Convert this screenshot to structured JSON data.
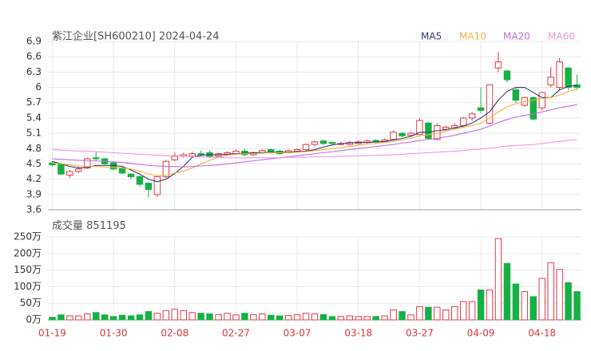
{
  "chart_data": [
    {
      "type": "candlestick",
      "title": "紫江企业[SH600210] 2024-04-24",
      "categories": [
        "01-19",
        null,
        null,
        null,
        null,
        null,
        null,
        "01-30",
        null,
        null,
        null,
        null,
        null,
        null,
        "02-08",
        null,
        null,
        null,
        null,
        null,
        null,
        "02-27",
        null,
        null,
        null,
        null,
        null,
        null,
        "03-07",
        null,
        null,
        null,
        null,
        null,
        null,
        "03-18",
        null,
        null,
        null,
        null,
        null,
        null,
        "03-27",
        null,
        null,
        null,
        null,
        null,
        null,
        "04-09",
        null,
        null,
        null,
        null,
        null,
        null,
        "04-18",
        null,
        null,
        null,
        null
      ],
      "open": [
        4.52,
        4.5,
        4.28,
        4.35,
        4.42,
        4.62,
        4.6,
        4.52,
        4.42,
        4.3,
        4.25,
        4.12,
        3.9,
        4.25,
        4.58,
        4.65,
        4.65,
        4.7,
        4.72,
        4.65,
        4.68,
        4.7,
        4.75,
        4.68,
        4.72,
        4.78,
        4.75,
        4.72,
        4.75,
        4.78,
        4.88,
        4.95,
        4.92,
        4.88,
        4.88,
        4.9,
        4.92,
        4.96,
        4.93,
        4.98,
        5.1,
        5.06,
        5.08,
        5.3,
        4.98,
        5.18,
        5.2,
        5.25,
        5.4,
        5.6,
        5.3,
        6.38,
        6.32,
        5.95,
        5.65,
        5.8,
        5.6,
        6.05,
        6.0,
        6.38,
        6.05
      ],
      "high": [
        4.55,
        4.52,
        4.38,
        4.45,
        4.62,
        4.75,
        4.62,
        4.54,
        4.44,
        4.32,
        4.27,
        4.15,
        4.28,
        4.58,
        4.72,
        4.72,
        4.74,
        4.76,
        4.76,
        4.72,
        4.75,
        4.78,
        4.8,
        4.74,
        4.78,
        4.8,
        4.78,
        4.78,
        4.8,
        4.9,
        4.96,
        4.97,
        4.94,
        4.93,
        4.95,
        4.96,
        4.98,
        4.98,
        5.0,
        5.15,
        5.12,
        5.13,
        5.4,
        5.32,
        5.3,
        5.25,
        5.3,
        5.42,
        5.52,
        6.0,
        6.05,
        6.7,
        6.35,
        6.0,
        5.82,
        5.82,
        5.92,
        6.4,
        6.58,
        6.4,
        6.25
      ],
      "low": [
        4.45,
        4.28,
        4.22,
        4.32,
        4.4,
        4.55,
        4.48,
        4.38,
        4.3,
        4.2,
        4.05,
        3.85,
        3.85,
        4.22,
        4.55,
        4.62,
        4.62,
        4.65,
        4.62,
        4.63,
        4.66,
        4.68,
        4.65,
        4.66,
        4.7,
        4.7,
        4.68,
        4.7,
        4.73,
        4.76,
        4.85,
        4.87,
        4.88,
        4.86,
        4.86,
        4.88,
        4.9,
        4.9,
        4.92,
        4.96,
        5.02,
        5.04,
        5.06,
        4.98,
        4.96,
        5.15,
        5.18,
        5.22,
        5.35,
        5.5,
        5.28,
        6.3,
        6.1,
        5.7,
        5.62,
        5.35,
        5.55,
        6.0,
        5.95,
        5.95,
        5.95
      ],
      "close": [
        4.48,
        4.3,
        4.35,
        4.4,
        4.6,
        4.6,
        4.5,
        4.4,
        4.32,
        4.25,
        4.1,
        4.0,
        4.25,
        4.55,
        4.65,
        4.68,
        4.7,
        4.68,
        4.65,
        4.7,
        4.72,
        4.75,
        4.68,
        4.72,
        4.76,
        4.72,
        4.7,
        4.76,
        4.78,
        4.88,
        4.93,
        4.9,
        4.9,
        4.9,
        4.92,
        4.93,
        4.95,
        4.93,
        4.97,
        5.12,
        5.05,
        5.1,
        5.35,
        5.0,
        5.25,
        5.22,
        5.25,
        5.4,
        5.48,
        5.55,
        6.05,
        6.5,
        6.15,
        5.75,
        5.8,
        5.38,
        5.9,
        6.2,
        6.5,
        6.0,
        6.0
      ],
      "up_color": "#e8364a",
      "down_color": "#14b143",
      "series": [
        {
          "name": "MA5",
          "color": "#333a73",
          "values": [
            4.55,
            4.5,
            4.45,
            4.42,
            4.43,
            4.47,
            4.47,
            4.47,
            4.45,
            4.38,
            4.3,
            4.2,
            4.15,
            4.2,
            4.31,
            4.45,
            4.63,
            4.67,
            4.68,
            4.68,
            4.69,
            4.7,
            4.71,
            4.72,
            4.72,
            4.73,
            4.73,
            4.73,
            4.74,
            4.75,
            4.78,
            4.83,
            4.87,
            4.9,
            4.91,
            4.92,
            4.92,
            4.93,
            4.94,
            4.97,
            5.0,
            5.04,
            5.12,
            5.12,
            5.15,
            5.17,
            5.21,
            5.24,
            5.3,
            5.4,
            5.52,
            5.75,
            5.92,
            6.0,
            6.0,
            5.9,
            5.8,
            5.8,
            5.95,
            6.02,
            6.04
          ]
        },
        {
          "name": "MA10",
          "color": "#f4b13e",
          "values": [
            4.52,
            4.5,
            4.48,
            4.46,
            4.45,
            4.45,
            4.44,
            4.43,
            4.42,
            4.4,
            4.36,
            4.3,
            4.27,
            4.28,
            4.32,
            4.36,
            4.42,
            4.5,
            4.57,
            4.63,
            4.67,
            4.69,
            4.7,
            4.7,
            4.71,
            4.72,
            4.72,
            4.72,
            4.73,
            4.74,
            4.76,
            4.78,
            4.8,
            4.82,
            4.84,
            4.87,
            4.89,
            4.9,
            4.92,
            4.94,
            4.97,
            5.0,
            5.05,
            5.07,
            5.1,
            5.14,
            5.18,
            5.22,
            5.25,
            5.3,
            5.4,
            5.52,
            5.62,
            5.68,
            5.72,
            5.75,
            5.78,
            5.8,
            5.85,
            5.92,
            5.97
          ]
        },
        {
          "name": "MA20",
          "color": "#c06fdc",
          "values": [
            4.6,
            4.59,
            4.58,
            4.57,
            4.56,
            4.56,
            4.55,
            4.54,
            4.53,
            4.51,
            4.49,
            4.47,
            4.46,
            4.45,
            4.45,
            4.44,
            4.45,
            4.46,
            4.47,
            4.48,
            4.5,
            4.52,
            4.54,
            4.56,
            4.58,
            4.6,
            4.62,
            4.64,
            4.66,
            4.68,
            4.7,
            4.72,
            4.74,
            4.76,
            4.78,
            4.8,
            4.82,
            4.84,
            4.86,
            4.88,
            4.91,
            4.93,
            4.96,
            4.98,
            5.0,
            5.03,
            5.06,
            5.1,
            5.14,
            5.18,
            5.24,
            5.31,
            5.37,
            5.42,
            5.45,
            5.48,
            5.52,
            5.56,
            5.6,
            5.63,
            5.66
          ]
        },
        {
          "name": "MA60",
          "color": "#ee99dd",
          "values": [
            4.78,
            4.77,
            4.76,
            4.75,
            4.75,
            4.74,
            4.73,
            4.72,
            4.71,
            4.7,
            4.69,
            4.68,
            4.67,
            4.66,
            4.66,
            4.65,
            4.64,
            4.64,
            4.63,
            4.63,
            4.62,
            4.62,
            4.62,
            4.62,
            4.62,
            4.62,
            4.62,
            4.63,
            4.63,
            4.63,
            4.64,
            4.64,
            4.64,
            4.65,
            4.65,
            4.66,
            4.66,
            4.67,
            4.67,
            4.68,
            4.69,
            4.7,
            4.71,
            4.72,
            4.73,
            4.74,
            4.75,
            4.76,
            4.78,
            4.79,
            4.81,
            4.83,
            4.85,
            4.86,
            4.87,
            4.88,
            4.9,
            4.92,
            4.94,
            4.96,
            4.98
          ]
        }
      ],
      "ylim": [
        3.6,
        6.9
      ],
      "yticks": [
        6.9,
        6.6,
        6.3,
        6,
        5.7,
        5.4,
        5.1,
        4.8,
        4.5,
        4.2,
        3.9,
        3.6
      ],
      "grid": true
    },
    {
      "type": "bar",
      "title": "成交量",
      "last_value": 851195,
      "values": [
        8,
        15,
        12,
        12,
        18,
        22,
        15,
        10,
        14,
        12,
        15,
        25,
        20,
        28,
        32,
        28,
        22,
        20,
        18,
        16,
        20,
        15,
        20,
        16,
        18,
        14,
        12,
        13,
        16,
        20,
        18,
        16,
        10,
        10,
        12,
        10,
        10,
        10,
        12,
        30,
        25,
        15,
        40,
        38,
        38,
        30,
        40,
        55,
        55,
        90,
        90,
        245,
        170,
        108,
        85,
        70,
        125,
        172,
        152,
        112,
        85.1195
      ],
      "ylim": [
        0,
        250
      ],
      "yticks": [
        {
          "value": 250,
          "label": "250万"
        },
        {
          "value": 200,
          "label": "200万"
        },
        {
          "value": 150,
          "label": "150万"
        },
        {
          "value": 100,
          "label": "100万"
        },
        {
          "value": 50,
          "label": "50万"
        },
        {
          "value": 0,
          "label": "0万"
        }
      ],
      "grid": true
    }
  ]
}
